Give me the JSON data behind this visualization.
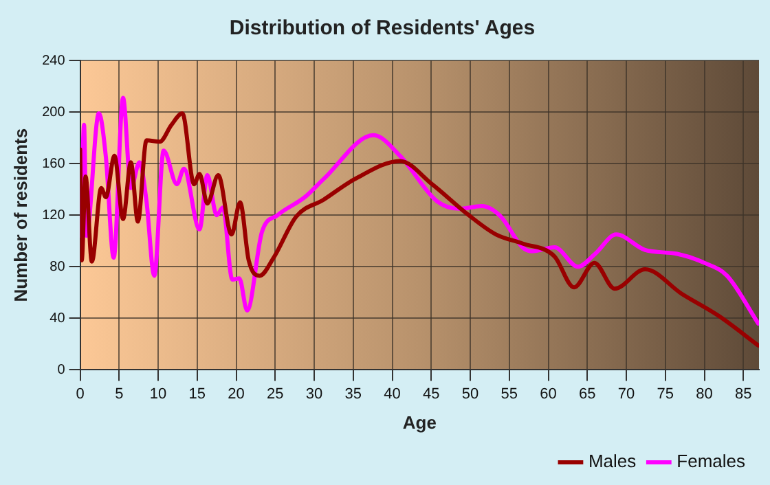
{
  "chart_data": {
    "type": "line",
    "title": "Distribution of Residents' Ages",
    "xlabel": "Age",
    "ylabel": "Number of residents",
    "xlim": [
      0,
      87
    ],
    "xticks": [
      0,
      5,
      10,
      15,
      20,
      25,
      30,
      35,
      40,
      45,
      50,
      55,
      60,
      65,
      70,
      75,
      80,
      85
    ],
    "ylim": [
      0,
      240
    ],
    "yticks": [
      0,
      40,
      80,
      120,
      160,
      200,
      240
    ],
    "grid": true,
    "legend": "bottom right",
    "marker": "none",
    "line_style": "solid",
    "series": [
      {
        "name": "Males",
        "color": "#990000",
        "x": [
          0,
          0.2,
          0.7,
          1.5,
          2.7,
          3.3,
          4.4,
          5.5,
          6.5,
          7.4,
          8.5,
          10.2,
          11.7,
          13.1,
          14.6,
          15.3,
          16.3,
          17.7,
          19.4,
          20.5,
          21.6,
          23,
          24.8,
          27.7,
          31.2,
          35.2,
          41,
          45.1,
          49.8,
          53.3,
          56.7,
          60.8,
          63.3,
          65.9,
          68.5,
          72.4,
          77.1,
          81.8,
          86.9
        ],
        "values": [
          171,
          85,
          150,
          84,
          141,
          134,
          166,
          117,
          161,
          115,
          178,
          177,
          190,
          199,
          144,
          152,
          129,
          151,
          105,
          130,
          85,
          73,
          87,
          119,
          132,
          148,
          162,
          144,
          120,
          105,
          98,
          88,
          64,
          83,
          63,
          78,
          59,
          42,
          19
        ]
      },
      {
        "name": "Females",
        "color": "#ff00ff",
        "x": [
          0.1,
          0.5,
          0.8,
          2.4,
          3.3,
          4.3,
          5.5,
          6.5,
          7.6,
          8.5,
          9.5,
          10.7,
          12.4,
          13.3,
          15.3,
          16.3,
          17.5,
          18.3,
          19.5,
          20.4,
          21.4,
          23.3,
          25.3,
          28.8,
          31.2,
          37.6,
          41,
          45.7,
          48.6,
          51.5,
          53.9,
          56.7,
          57.9,
          60.8,
          63.8,
          66,
          68.7,
          72.4,
          76.5,
          80,
          82.9,
          86.9
        ],
        "values": [
          104,
          190,
          104,
          199,
          165,
          87,
          211,
          141,
          161,
          131,
          73,
          170,
          144,
          156,
          109,
          151,
          120,
          126,
          70,
          71,
          46,
          107,
          120,
          134,
          148,
          182,
          166,
          131,
          125,
          127,
          119,
          95,
          92,
          95,
          80,
          90,
          105,
          93,
          90,
          83,
          73,
          36
        ]
      }
    ]
  }
}
